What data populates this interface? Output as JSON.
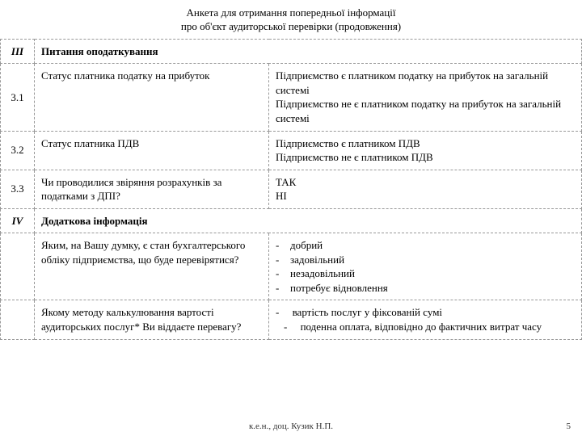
{
  "title_line1": "Анкета для отримання попередньої інформації",
  "title_line2": "про об'єкт аудиторської перевірки  (продовження)",
  "sections": {
    "s3": {
      "num": "ІІІ",
      "label": "Питання оподаткування"
    },
    "s4": {
      "num": "IV",
      "label": "Додаткова інформація"
    }
  },
  "rows": {
    "r31": {
      "num": "3.1",
      "q": "Статус платника податку на прибуток",
      "a1": "Підприємство є платником податку на прибуток на загальній системі",
      "a2": "Підприємство не є платником податку на прибуток на загальній системі"
    },
    "r32": {
      "num": "3.2",
      "q": "Статус платника ПДВ",
      "a1": "Підприємство є платником ПДВ",
      "a2": "Підприємство не є платником ПДВ"
    },
    "r33": {
      "num": "3.3",
      "q": "Чи проводилися звіряння розрахунків за податками з ДПІ?",
      "a1": "ТАК",
      "a2": "НІ"
    },
    "r4a": {
      "q": "Яким, на Вашу думку, є стан бухгалтерського обліку підприємства, що буде перевірятися?",
      "opts": [
        "добрий",
        "задовільний",
        "незадовільний",
        "потребує відновлення"
      ]
    },
    "r4b": {
      "q": "Якому методу калькулювання вартості аудиторських послуг* Ви віддаєте перевагу?",
      "o1": "вартість послуг у фіксованій сумі",
      "o2": "поденна оплата, відповідно до фактичних витрат часу"
    }
  },
  "footer": {
    "author": "к.е.н., доц. Кузик Н.П.",
    "page": "5"
  },
  "dash": "-"
}
